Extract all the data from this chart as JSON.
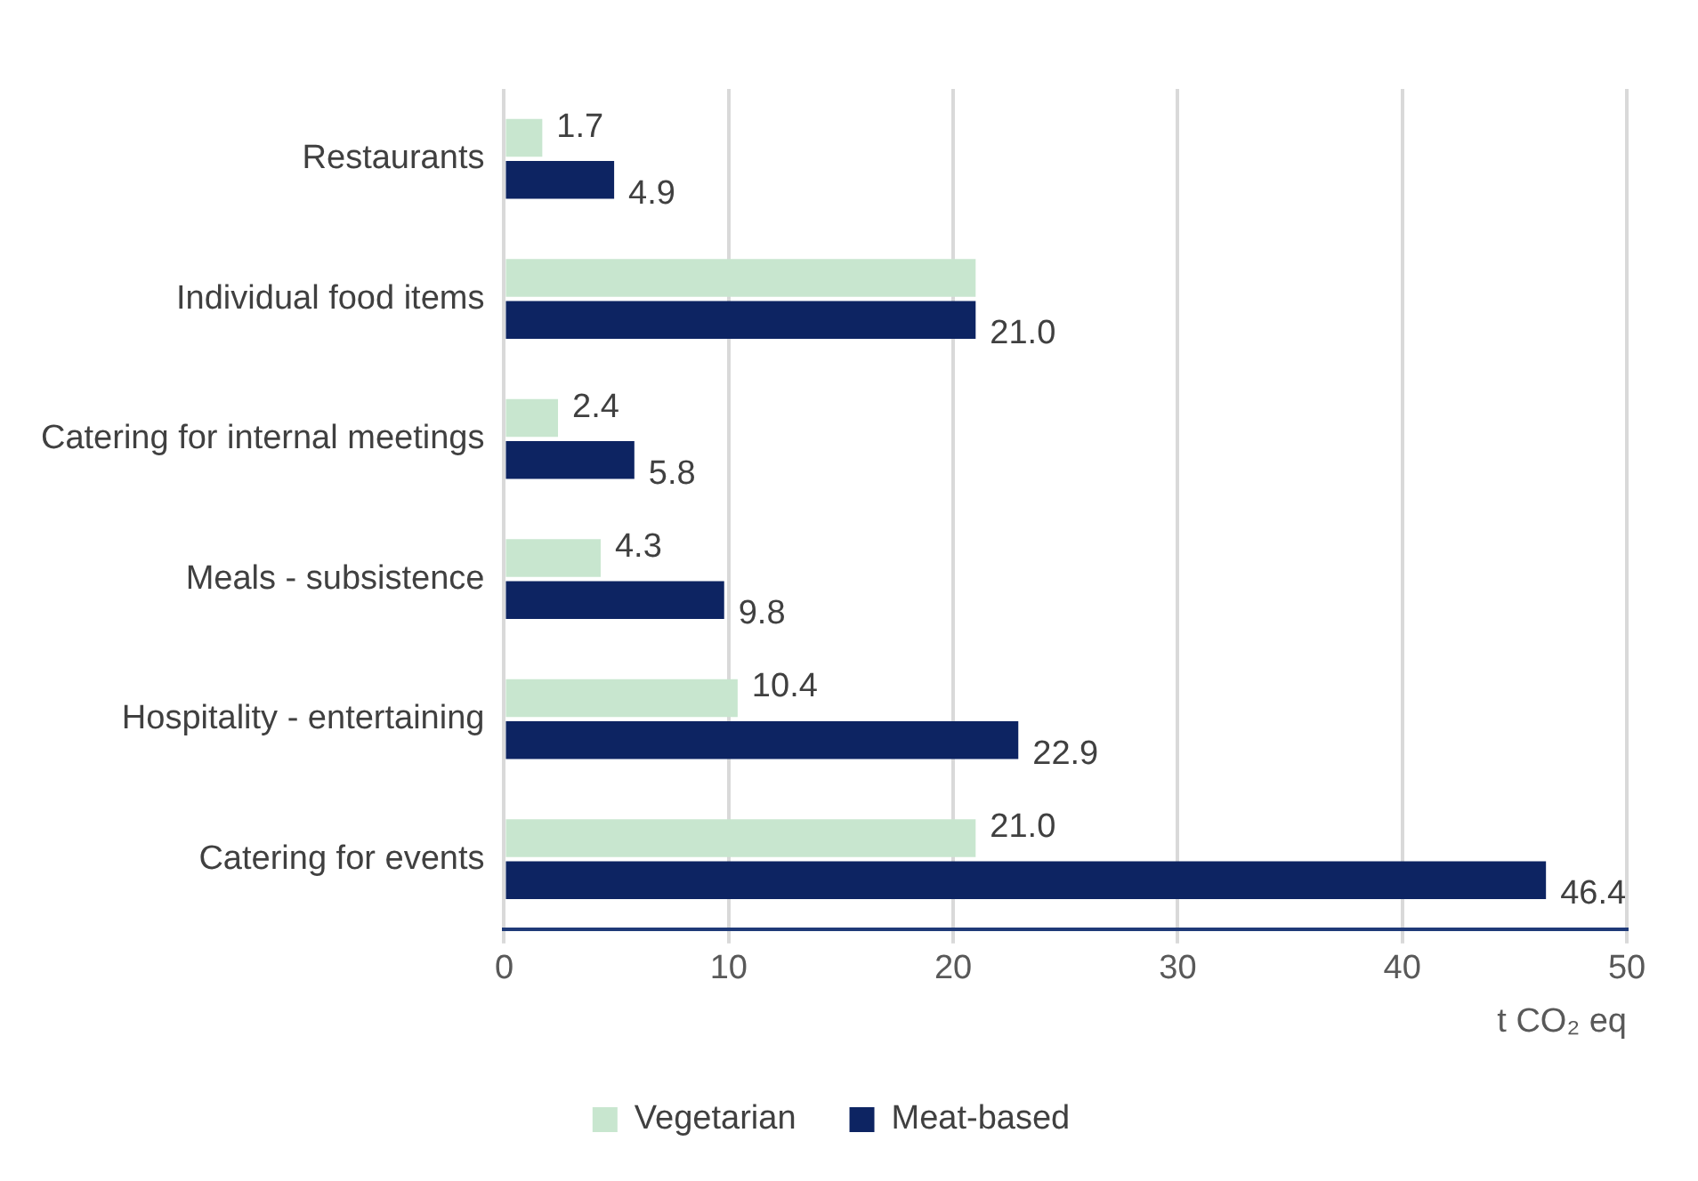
{
  "chart_data": {
    "type": "bar",
    "orientation": "horizontal",
    "xlabel": "t CO₂ eq",
    "categories": [
      "Restaurants",
      "Individual food items",
      "Catering for internal meetings",
      "Meals - subsistence",
      "Hospitality - entertaining",
      "Catering for events"
    ],
    "series": [
      {
        "name": "Vegetarian",
        "color": "#c8e6cf",
        "values": [
          1.7,
          21.0,
          2.4,
          4.3,
          10.4,
          21.0
        ],
        "value_labels": [
          "1.7",
          null,
          "2.4",
          "4.3",
          "10.4",
          "21.0"
        ]
      },
      {
        "name": "Meat-based",
        "color": "#0d2462",
        "values": [
          4.9,
          21.0,
          5.8,
          9.8,
          22.9,
          46.4
        ],
        "value_labels": [
          "4.9",
          "21.0",
          "5.8",
          "9.8",
          "22.9",
          "46.4"
        ]
      }
    ],
    "xlim": [
      0,
      50
    ],
    "xticks": [
      0,
      10,
      20,
      30,
      40,
      50
    ],
    "grid": "x",
    "legend": "bottom"
  }
}
